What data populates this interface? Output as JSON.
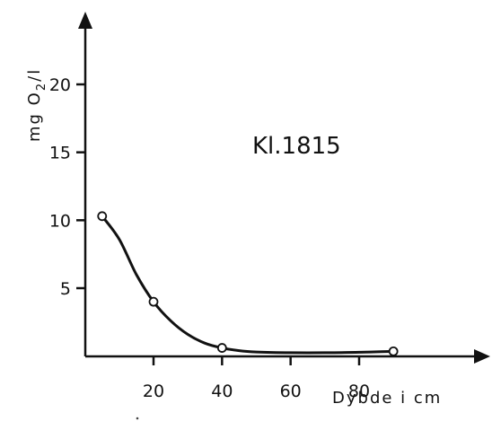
{
  "chart_data": {
    "type": "line",
    "title": "",
    "annotation": "Kl.1815",
    "xlabel": "Dybde i cm",
    "ylabel": "mg O2/l",
    "ylabel_main": "mg O",
    "ylabel_sub": "2",
    "ylabel_tail": "/l",
    "xlim": [
      -5,
      120
    ],
    "ylim": [
      0,
      25
    ],
    "x_ticks": [
      20,
      40,
      60,
      80
    ],
    "x_tick_labels": [
      "20",
      "40",
      "60",
      "80"
    ],
    "y_ticks": [
      5,
      10,
      15,
      20
    ],
    "y_tick_labels": [
      "5",
      "10",
      "15",
      "20"
    ],
    "grid": false,
    "series": [
      {
        "points": [
          {
            "x": 5,
            "y": 10.3
          },
          {
            "x": 20,
            "y": 4.0
          },
          {
            "x": 40,
            "y": 0.6
          },
          {
            "x": 90,
            "y": 0.35
          }
        ],
        "curve": [
          {
            "x": 5,
            "y": 10.3
          },
          {
            "x": 10,
            "y": 8.6
          },
          {
            "x": 15,
            "y": 6.0
          },
          {
            "x": 20,
            "y": 4.0
          },
          {
            "x": 25,
            "y": 2.6
          },
          {
            "x": 30,
            "y": 1.6
          },
          {
            "x": 35,
            "y": 0.95
          },
          {
            "x": 40,
            "y": 0.6
          },
          {
            "x": 45,
            "y": 0.4
          },
          {
            "x": 50,
            "y": 0.3
          },
          {
            "x": 60,
            "y": 0.25
          },
          {
            "x": 70,
            "y": 0.25
          },
          {
            "x": 80,
            "y": 0.28
          },
          {
            "x": 90,
            "y": 0.35
          }
        ]
      }
    ]
  },
  "colors": {
    "ink": "#111111",
    "background": "#ffffff"
  }
}
